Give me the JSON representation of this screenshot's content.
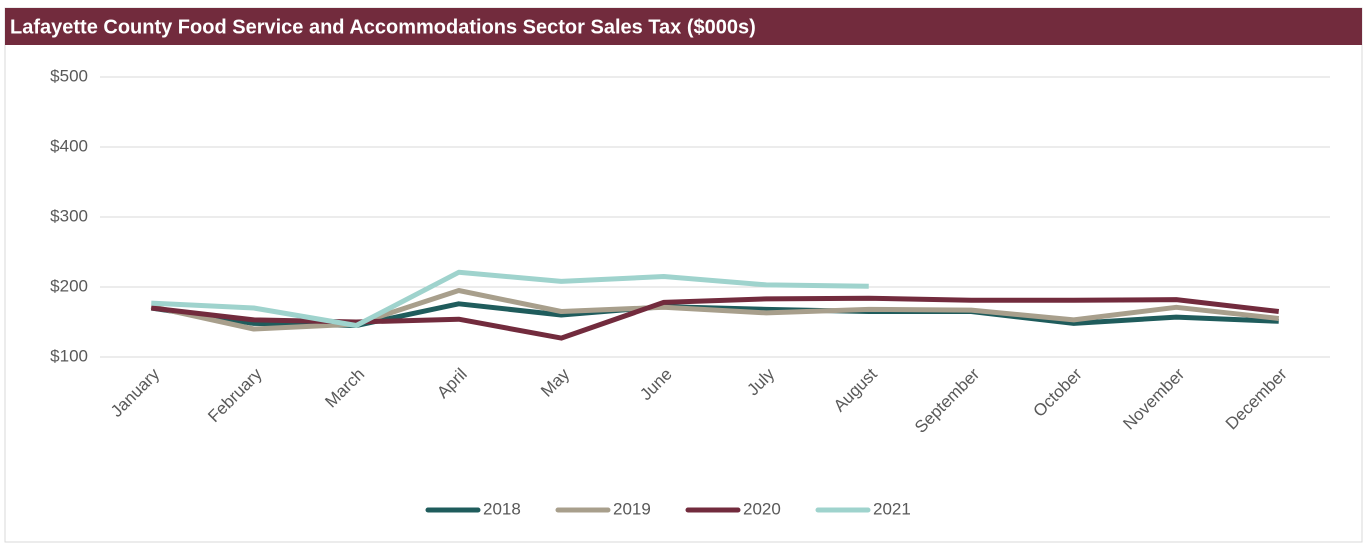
{
  "chart_data": {
    "type": "line",
    "title": "Lafayette County Food Service and Accommodations Sector Sales Tax ($000s)",
    "categories": [
      "January",
      "February",
      "March",
      "April",
      "May",
      "June",
      "July",
      "August",
      "September",
      "October",
      "November",
      "December"
    ],
    "series": [
      {
        "name": "2018",
        "color": "#1f5c5c",
        "values": [
          170,
          148,
          145,
          176,
          160,
          172,
          168,
          165,
          165,
          148,
          157,
          151
        ]
      },
      {
        "name": "2019",
        "color": "#a89f8c",
        "values": [
          172,
          140,
          147,
          195,
          165,
          171,
          163,
          168,
          167,
          153,
          171,
          155
        ]
      },
      {
        "name": "2020",
        "color": "#722b3d",
        "values": [
          170,
          153,
          150,
          154,
          127,
          178,
          183,
          184,
          181,
          181,
          182,
          165
        ]
      },
      {
        "name": "2021",
        "color": "#9fd3cd",
        "values": [
          177,
          170,
          145,
          221,
          208,
          215,
          203,
          201,
          null,
          null,
          null,
          null
        ]
      }
    ],
    "ylim": [
      100,
      500
    ],
    "yticks": [
      {
        "value": 100,
        "label": "$100"
      },
      {
        "value": 200,
        "label": "$200"
      },
      {
        "value": 300,
        "label": "$300"
      },
      {
        "value": 400,
        "label": "$400"
      },
      {
        "value": 500,
        "label": "$500"
      }
    ],
    "grid": true,
    "legend": "bottom"
  }
}
